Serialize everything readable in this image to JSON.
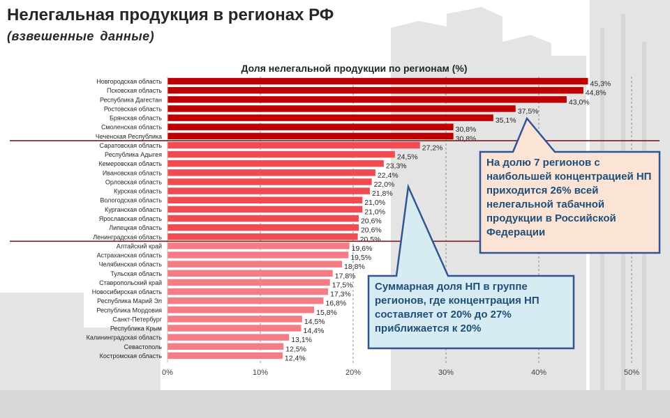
{
  "title": "Нелегальная продукция в регионах РФ",
  "subtitle": "(взвешенные  данные)",
  "chart_data": {
    "type": "bar",
    "orientation": "horizontal",
    "title": "Доля нелегальной продукции по регионам (%)",
    "categories": [
      "Новгородская область",
      "Псковская область",
      "Республика Дагестан",
      "Ростовская область",
      "Брянская область",
      "Смоленская область",
      "Чеченская Республика",
      "Саратовская область",
      "Республика Адыгея",
      "Кемеровская область",
      "Ивановская область",
      "Орловская область",
      "Курская область",
      "Вологодская область",
      "Курганская область",
      "Ярославская область",
      "Липецкая область",
      "Ленинградская область",
      "Алтайский край",
      "Астраханская область",
      "Челябинская область",
      "Тульская область",
      "Ставропольский край",
      "Новосибирская область",
      "Республика Марий Эл",
      "Республика Мордовия",
      "Санкт-Петербург",
      "Республика Крым",
      "Калининградская область",
      "Севастополь",
      "Костромская область"
    ],
    "values": [
      45.3,
      44.8,
      43.0,
      37.5,
      35.1,
      30.8,
      30.8,
      27.2,
      24.5,
      23.3,
      22.4,
      22.0,
      21.8,
      21.0,
      21.0,
      20.6,
      20.6,
      20.5,
      19.6,
      19.5,
      18.8,
      17.8,
      17.5,
      17.3,
      16.8,
      15.8,
      14.5,
      14.4,
      13.1,
      12.5,
      12.4
    ],
    "value_labels": [
      "45,3%",
      "44,8%",
      "43,0%",
      "37,5%",
      "35,1%",
      "30,8%",
      "30,8%",
      "27,2%",
      "24,5%",
      "23,3%",
      "22,4%",
      "22,0%",
      "21,8%",
      "21,0%",
      "21,0%",
      "20,6%",
      "20,6%",
      "20,5%",
      "19,6%",
      "19,5%",
      "18,8%",
      "17,8%",
      "17,5%",
      "17,3%",
      "16,8%",
      "15,8%",
      "14,5%",
      "14,4%",
      "13,1%",
      "12,5%",
      "12,4%"
    ],
    "groups": [
      {
        "from": 0,
        "to": 6,
        "color": "#c00000"
      },
      {
        "from": 7,
        "to": 17,
        "color": "#f04b50"
      },
      {
        "from": 18,
        "to": 30,
        "color": "#f47c84"
      }
    ],
    "xlim": [
      0,
      50
    ],
    "xticks": [
      0,
      10,
      20,
      30,
      40,
      50
    ],
    "xtick_labels": [
      "0%",
      "10%",
      "20%",
      "30%",
      "40%",
      "50%"
    ],
    "grid": "vertical-dashed",
    "separator_color": "#7f1a1a",
    "callouts": [
      {
        "text": "На долю 7 регионов с наибольшей концентрацией НП приходится 26% всей нелегальной табачной продукции в Российской Федерации",
        "fill": "#fbe4d5",
        "stroke": "#2f5597"
      },
      {
        "text": "Суммарная доля НП в группе регионов, где концентрация НП составляет от 20% до 27% приближается к 20%",
        "fill": "#d6ebf2",
        "stroke": "#2f5597"
      }
    ]
  }
}
